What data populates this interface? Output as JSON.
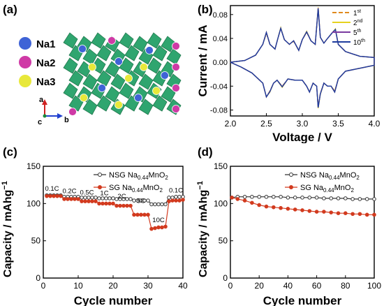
{
  "panels": {
    "a": {
      "label": "(a)",
      "legend": [
        {
          "name": "Na1",
          "color": "#3f63d6"
        },
        {
          "name": "Na2",
          "color": "#cf3aa6"
        },
        {
          "name": "Na3",
          "color": "#e8e83a"
        }
      ],
      "axes": {
        "a": "a",
        "b": "b",
        "c": "c"
      },
      "polyhedra_color": "#1e9e63"
    },
    "b": {
      "label": "(b)"
    },
    "c": {
      "label": "(c)"
    },
    "d": {
      "label": "(d)"
    }
  },
  "chart_data": [
    {
      "id": "b",
      "type": "line",
      "xlabel": "Voltage / V",
      "ylabel": "Current / mA",
      "xlim": [
        2.0,
        4.0
      ],
      "ylim": [
        -0.09,
        0.095
      ],
      "xticks": [
        "2.0",
        "2.5",
        "3.0",
        "3.5",
        "4.0"
      ],
      "yticks": [
        "0.08",
        "0.04",
        "0.00",
        "-0.04",
        "-0.08"
      ],
      "ytick_values": [
        0.08,
        0.04,
        0.0,
        -0.04,
        -0.08
      ],
      "legend": {
        "placement": "top-right"
      },
      "series": [
        {
          "name": "1",
          "sup": "st",
          "color": "#e08a1e",
          "dash": "6,3",
          "ox": [
            2.0,
            2.2,
            2.35,
            2.45,
            2.5,
            2.55,
            2.62,
            2.66,
            2.7,
            2.75,
            2.82,
            2.88,
            2.95,
            3.0,
            3.06,
            3.12,
            3.18,
            3.22,
            3.25,
            3.3,
            3.35,
            3.42,
            3.46,
            3.5,
            3.6,
            3.8,
            4.0
          ],
          "oy": [
            0.0,
            0.003,
            0.012,
            0.03,
            0.048,
            0.03,
            0.022,
            0.04,
            0.057,
            0.038,
            0.03,
            0.035,
            0.02,
            0.038,
            0.05,
            0.036,
            0.03,
            0.09,
            0.042,
            0.032,
            0.04,
            0.05,
            0.055,
            0.03,
            0.018,
            0.01,
            0.008
          ],
          "rx": [
            4.0,
            3.8,
            3.6,
            3.5,
            3.45,
            3.4,
            3.35,
            3.3,
            3.25,
            3.22,
            3.2,
            3.15,
            3.1,
            3.06,
            3.0,
            2.95,
            2.9,
            2.8,
            2.72,
            2.65,
            2.6,
            2.55,
            2.5,
            2.45,
            2.3,
            2.15,
            2.0
          ],
          "ry": [
            -0.005,
            -0.01,
            -0.015,
            -0.028,
            -0.048,
            -0.04,
            -0.04,
            -0.035,
            -0.052,
            -0.075,
            -0.04,
            -0.035,
            -0.05,
            -0.04,
            -0.03,
            -0.03,
            -0.03,
            -0.028,
            -0.04,
            -0.03,
            -0.035,
            -0.048,
            -0.058,
            -0.035,
            -0.018,
            -0.008,
            0.0
          ]
        },
        {
          "name": "2",
          "sup": "nd",
          "color": "#e6d21e",
          "dash": "",
          "ox": [
            2.0,
            2.2,
            2.35,
            2.45,
            2.5,
            2.55,
            2.62,
            2.66,
            2.7,
            2.75,
            2.82,
            2.88,
            2.95,
            3.0,
            3.06,
            3.12,
            3.18,
            3.22,
            3.25,
            3.3,
            3.35,
            3.42,
            3.46,
            3.5,
            3.6,
            3.8,
            4.0
          ],
          "oy": [
            0.0,
            0.003,
            0.012,
            0.03,
            0.05,
            0.03,
            0.022,
            0.04,
            0.058,
            0.038,
            0.03,
            0.036,
            0.02,
            0.038,
            0.052,
            0.036,
            0.03,
            0.092,
            0.042,
            0.032,
            0.04,
            0.05,
            0.056,
            0.03,
            0.018,
            0.01,
            0.008
          ],
          "rx": [
            4.0,
            3.8,
            3.6,
            3.5,
            3.45,
            3.4,
            3.35,
            3.3,
            3.25,
            3.22,
            3.2,
            3.15,
            3.1,
            3.06,
            3.0,
            2.95,
            2.9,
            2.8,
            2.72,
            2.65,
            2.6,
            2.55,
            2.5,
            2.45,
            2.3,
            2.15,
            2.0
          ],
          "ry": [
            -0.005,
            -0.01,
            -0.015,
            -0.028,
            -0.05,
            -0.04,
            -0.04,
            -0.035,
            -0.054,
            -0.077,
            -0.04,
            -0.035,
            -0.05,
            -0.04,
            -0.03,
            -0.03,
            -0.03,
            -0.028,
            -0.042,
            -0.03,
            -0.035,
            -0.05,
            -0.058,
            -0.035,
            -0.018,
            -0.008,
            0.0
          ]
        },
        {
          "name": "5",
          "sup": "th",
          "color": "#7a3aa0",
          "dash": "",
          "ox": [
            2.0,
            2.2,
            2.35,
            2.45,
            2.5,
            2.55,
            2.62,
            2.66,
            2.7,
            2.75,
            2.82,
            2.88,
            2.95,
            3.0,
            3.06,
            3.12,
            3.18,
            3.22,
            3.25,
            3.3,
            3.35,
            3.42,
            3.46,
            3.5,
            3.6,
            3.8,
            4.0
          ],
          "oy": [
            0.0,
            0.003,
            0.012,
            0.03,
            0.05,
            0.03,
            0.022,
            0.04,
            0.057,
            0.038,
            0.03,
            0.036,
            0.02,
            0.038,
            0.051,
            0.036,
            0.03,
            0.091,
            0.042,
            0.032,
            0.04,
            0.05,
            0.055,
            0.03,
            0.018,
            0.01,
            0.008
          ],
          "rx": [
            4.0,
            3.8,
            3.6,
            3.5,
            3.45,
            3.4,
            3.35,
            3.3,
            3.25,
            3.22,
            3.2,
            3.15,
            3.1,
            3.06,
            3.0,
            2.95,
            2.9,
            2.8,
            2.72,
            2.65,
            2.6,
            2.55,
            2.5,
            2.45,
            2.3,
            2.15,
            2.0
          ],
          "ry": [
            -0.005,
            -0.01,
            -0.015,
            -0.028,
            -0.05,
            -0.04,
            -0.04,
            -0.035,
            -0.053,
            -0.076,
            -0.04,
            -0.035,
            -0.05,
            -0.04,
            -0.03,
            -0.03,
            -0.03,
            -0.028,
            -0.041,
            -0.03,
            -0.035,
            -0.049,
            -0.058,
            -0.035,
            -0.018,
            -0.008,
            0.0
          ]
        },
        {
          "name": "10",
          "sup": "th",
          "color": "#1e3c9e",
          "dash": "",
          "ox": [
            2.0,
            2.2,
            2.35,
            2.45,
            2.5,
            2.55,
            2.62,
            2.66,
            2.7,
            2.75,
            2.82,
            2.88,
            2.95,
            3.0,
            3.06,
            3.12,
            3.18,
            3.22,
            3.25,
            3.3,
            3.35,
            3.42,
            3.46,
            3.5,
            3.6,
            3.8,
            4.0
          ],
          "oy": [
            0.0,
            0.003,
            0.012,
            0.03,
            0.05,
            0.03,
            0.022,
            0.04,
            0.057,
            0.038,
            0.03,
            0.036,
            0.02,
            0.038,
            0.051,
            0.036,
            0.03,
            0.09,
            0.042,
            0.032,
            0.04,
            0.05,
            0.055,
            0.03,
            0.018,
            0.01,
            0.008
          ],
          "rx": [
            4.0,
            3.8,
            3.6,
            3.5,
            3.45,
            3.4,
            3.35,
            3.3,
            3.25,
            3.22,
            3.2,
            3.15,
            3.1,
            3.06,
            3.0,
            2.95,
            2.9,
            2.8,
            2.72,
            2.65,
            2.6,
            2.55,
            2.5,
            2.45,
            2.3,
            2.15,
            2.0
          ],
          "ry": [
            -0.005,
            -0.01,
            -0.015,
            -0.028,
            -0.05,
            -0.04,
            -0.04,
            -0.035,
            -0.053,
            -0.076,
            -0.04,
            -0.035,
            -0.05,
            -0.04,
            -0.03,
            -0.03,
            -0.03,
            -0.028,
            -0.041,
            -0.03,
            -0.035,
            -0.049,
            -0.058,
            -0.035,
            -0.018,
            -0.008,
            0.0
          ]
        }
      ]
    },
    {
      "id": "c",
      "type": "line",
      "xlabel": "Cycle number",
      "ylabel": "Capacity / mAhg",
      "ylabel_sup": "−1",
      "xlim": [
        0,
        40
      ],
      "ylim": [
        0,
        150
      ],
      "xticks": [
        0,
        10,
        20,
        30,
        40
      ],
      "yticks": [
        0,
        50,
        100,
        150
      ],
      "legend": {
        "placement": "top-right"
      },
      "rate_labels": [
        {
          "text": "0.1C",
          "x": 2.5,
          "y": 117
        },
        {
          "text": "0.2C",
          "x": 7.5,
          "y": 114
        },
        {
          "text": "0.5C",
          "x": 12.5,
          "y": 112
        },
        {
          "text": "1C",
          "x": 17.5,
          "y": 111
        },
        {
          "text": "2C",
          "x": 22.5,
          "y": 107
        },
        {
          "text": "5C",
          "x": 28,
          "y": 101
        },
        {
          "text": "10C",
          "x": 33,
          "y": 75
        },
        {
          "text": "0.1C",
          "x": 38,
          "y": 115
        }
      ],
      "series": [
        {
          "name": "NSG Na0.44MnO2",
          "name_main": "NSG Na",
          "name_sub": "0.44",
          "name_tail": "MnO",
          "name_sub2": "2",
          "color": "#333333",
          "marker": "open",
          "x": [
            1,
            2,
            3,
            4,
            5,
            6,
            7,
            8,
            9,
            10,
            11,
            12,
            13,
            14,
            15,
            16,
            17,
            18,
            19,
            20,
            21,
            22,
            23,
            24,
            25,
            26,
            27,
            28,
            29,
            30,
            31,
            32,
            33,
            34,
            35,
            36,
            37,
            38,
            39,
            40
          ],
          "y": [
            111,
            111,
            111,
            111,
            111,
            109,
            109,
            109,
            109,
            109,
            108,
            108,
            108,
            108,
            108,
            107,
            107,
            107,
            107,
            107,
            106,
            106,
            106,
            106,
            106,
            104,
            104,
            104,
            104,
            104,
            99,
            99,
            99,
            99,
            99,
            108,
            108,
            109,
            109,
            109
          ]
        },
        {
          "name": "SG Na0.44MnO2",
          "name_main": "SG Na",
          "name_sub": "0.44",
          "name_tail": "MnO",
          "name_sub2": "2",
          "color": "#d23a1e",
          "marker": "filled",
          "x": [
            1,
            2,
            3,
            4,
            5,
            6,
            7,
            8,
            9,
            10,
            11,
            12,
            13,
            14,
            15,
            16,
            17,
            18,
            19,
            20,
            21,
            22,
            23,
            24,
            25,
            26,
            27,
            28,
            29,
            30,
            31,
            32,
            33,
            34,
            35,
            36,
            37,
            38,
            39,
            40
          ],
          "y": [
            110,
            110,
            110,
            110,
            110,
            106,
            106,
            106,
            106,
            106,
            103,
            103,
            103,
            103,
            103,
            100,
            100,
            100,
            100,
            100,
            97,
            97,
            97,
            97,
            97,
            85,
            85,
            85,
            85,
            85,
            66,
            67,
            68,
            68,
            69,
            103,
            104,
            104,
            104,
            105
          ]
        }
      ]
    },
    {
      "id": "d",
      "type": "line",
      "xlabel": "Cycle number",
      "ylabel": "Capacity / mAhg",
      "ylabel_sup": "−1",
      "xlim": [
        0,
        100
      ],
      "ylim": [
        0,
        150
      ],
      "xticks": [
        0,
        20,
        40,
        60,
        80,
        100
      ],
      "yticks": [
        0,
        50,
        100,
        150
      ],
      "legend": {
        "placement": "top-right"
      },
      "series": [
        {
          "name": "NSG Na0.44MnO2",
          "name_main": "NSG Na",
          "name_sub": "0.44",
          "name_tail": "MnO",
          "name_sub2": "2",
          "color": "#333333",
          "marker": "open",
          "x": [
            1,
            5,
            10,
            15,
            20,
            25,
            30,
            35,
            40,
            45,
            50,
            55,
            60,
            65,
            70,
            75,
            80,
            85,
            90,
            95,
            100
          ],
          "y": [
            108,
            109,
            109,
            109,
            109,
            109,
            109,
            109,
            108,
            108,
            108,
            108,
            108,
            107,
            107,
            107,
            107,
            106,
            106,
            106,
            106
          ]
        },
        {
          "name": "SG Na0.44MnO2",
          "name_main": "SG Na",
          "name_sub": "0.44",
          "name_tail": "MnO",
          "name_sub2": "2",
          "color": "#d23a1e",
          "marker": "filled",
          "x": [
            1,
            5,
            10,
            15,
            20,
            25,
            30,
            35,
            40,
            45,
            50,
            55,
            60,
            65,
            70,
            75,
            80,
            85,
            90,
            95,
            100
          ],
          "y": [
            108,
            106,
            104,
            101,
            98,
            96,
            95,
            94,
            93,
            92,
            91,
            90,
            89,
            89,
            88,
            87,
            87,
            86,
            86,
            85,
            85
          ]
        }
      ]
    }
  ]
}
